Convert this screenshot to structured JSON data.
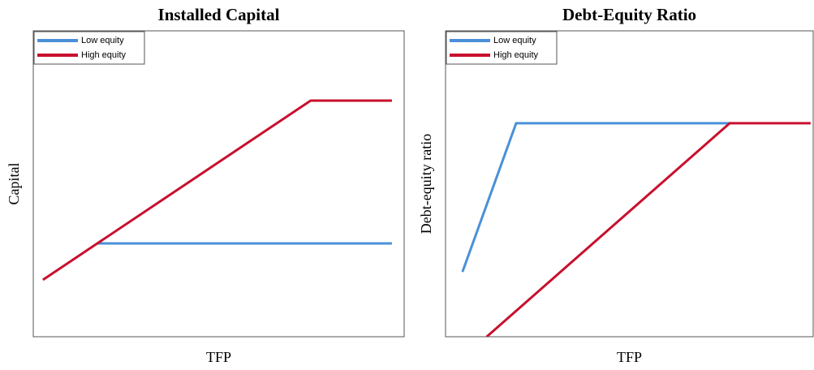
{
  "chart_data": [
    {
      "type": "line",
      "title": "Installed Capital",
      "xlabel": "TFP",
      "ylabel": "Capital",
      "xlim": [
        0,
        100
      ],
      "ylim": [
        0,
        100
      ],
      "legend": "upper left",
      "series": [
        {
          "name": "Low equity",
          "color": "#4a90d9",
          "x": [
            17.3,
            96.7
          ],
          "values": [
            30.5,
            30.5
          ]
        },
        {
          "name": "High equity",
          "color": "#c8102e",
          "x": [
            2.6,
            74.8,
            96.7
          ],
          "values": [
            18.6,
            77.2,
            77.2
          ]
        }
      ]
    },
    {
      "type": "line",
      "title": "Debt-Equity Ratio",
      "xlabel": "TFP",
      "ylabel": "Debt-equity ratio",
      "xlim": [
        0,
        100
      ],
      "ylim": [
        0,
        100
      ],
      "legend": "upper left",
      "series": [
        {
          "name": "Low equity",
          "color": "#4a90d9",
          "x": [
            4.6,
            19.2,
            77.3
          ],
          "values": [
            21.2,
            69.8,
            69.8
          ]
        },
        {
          "name": "High equity",
          "color": "#c8102e",
          "x": [
            11.2,
            77.3,
            99.3
          ],
          "values": [
            0,
            69.8,
            69.8
          ]
        }
      ]
    }
  ]
}
